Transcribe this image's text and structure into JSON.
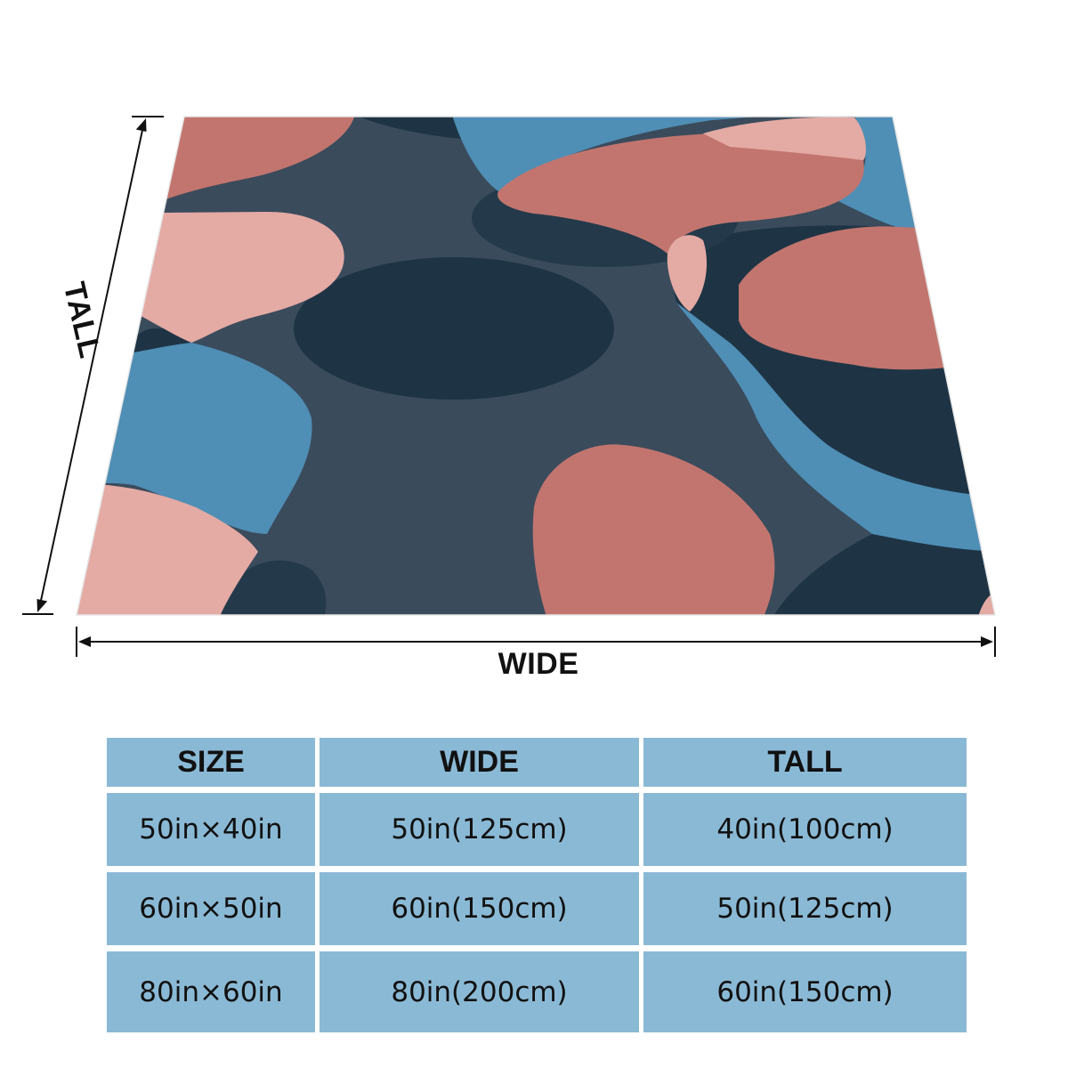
{
  "dimensions": {
    "wide_label": "WIDE",
    "tall_label": "TALL"
  },
  "blanket": {
    "pattern": "abstract organic blobs",
    "colors": {
      "navy": "#1e3445",
      "slate": "#3a4b5c",
      "blue": "#4f8eb5",
      "coral": "#c2756e",
      "pink": "#e4aaa4"
    }
  },
  "table": {
    "headers": [
      "SIZE",
      "WIDE",
      "TALL"
    ],
    "rows": [
      [
        "50in×40in",
        "50in(125cm)",
        "40in(100cm)"
      ],
      [
        "60in×50in",
        "60in(150cm)",
        "50in(125cm)"
      ],
      [
        "80in×60in",
        "80in(200cm)",
        "60in(150cm)"
      ]
    ],
    "cell_color": "#8ab9d5"
  }
}
